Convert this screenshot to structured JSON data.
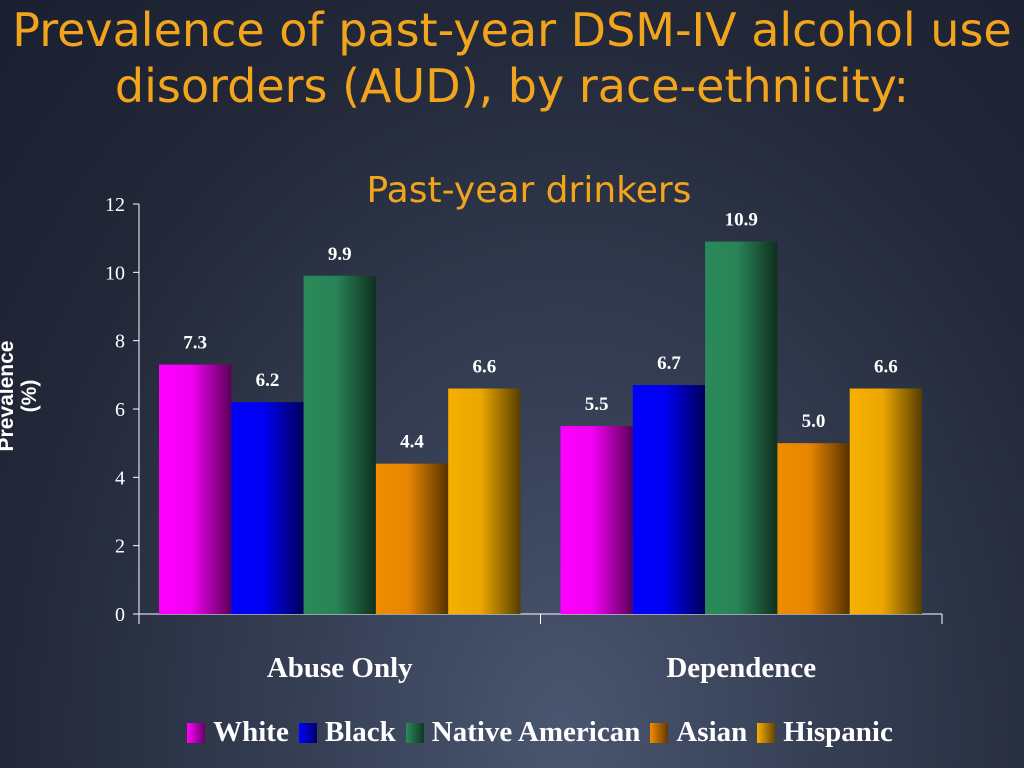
{
  "title": "Prevalence of past-year DSM-IV alcohol use disorders (AUD), by race-ethnicity:",
  "subtitle": "Past-year drinkers",
  "ylabel_line1": "Prevalence",
  "ylabel_line2": "(%)",
  "colors": {
    "White": "#ff00ff",
    "Black": "#0000ff",
    "Native American": "#2a8a5a",
    "Asian": "#f28c00",
    "Hispanic": "#f7b000"
  },
  "chart_data": {
    "type": "bar",
    "categories": [
      "Abuse Only",
      "Dependence"
    ],
    "series": [
      {
        "name": "White",
        "values": [
          7.3,
          5.5
        ]
      },
      {
        "name": "Black",
        "values": [
          6.2,
          6.7
        ]
      },
      {
        "name": "Native American",
        "values": [
          9.9,
          10.9
        ]
      },
      {
        "name": "Asian",
        "values": [
          4.4,
          5.0
        ]
      },
      {
        "name": "Hispanic",
        "values": [
          6.6,
          6.6
        ]
      }
    ],
    "ylim": [
      0,
      12
    ],
    "yticks": [
      0,
      2,
      4,
      6,
      8,
      10,
      12
    ],
    "ylabel": "Prevalence (%)",
    "grid": false,
    "legend": "bottom"
  }
}
